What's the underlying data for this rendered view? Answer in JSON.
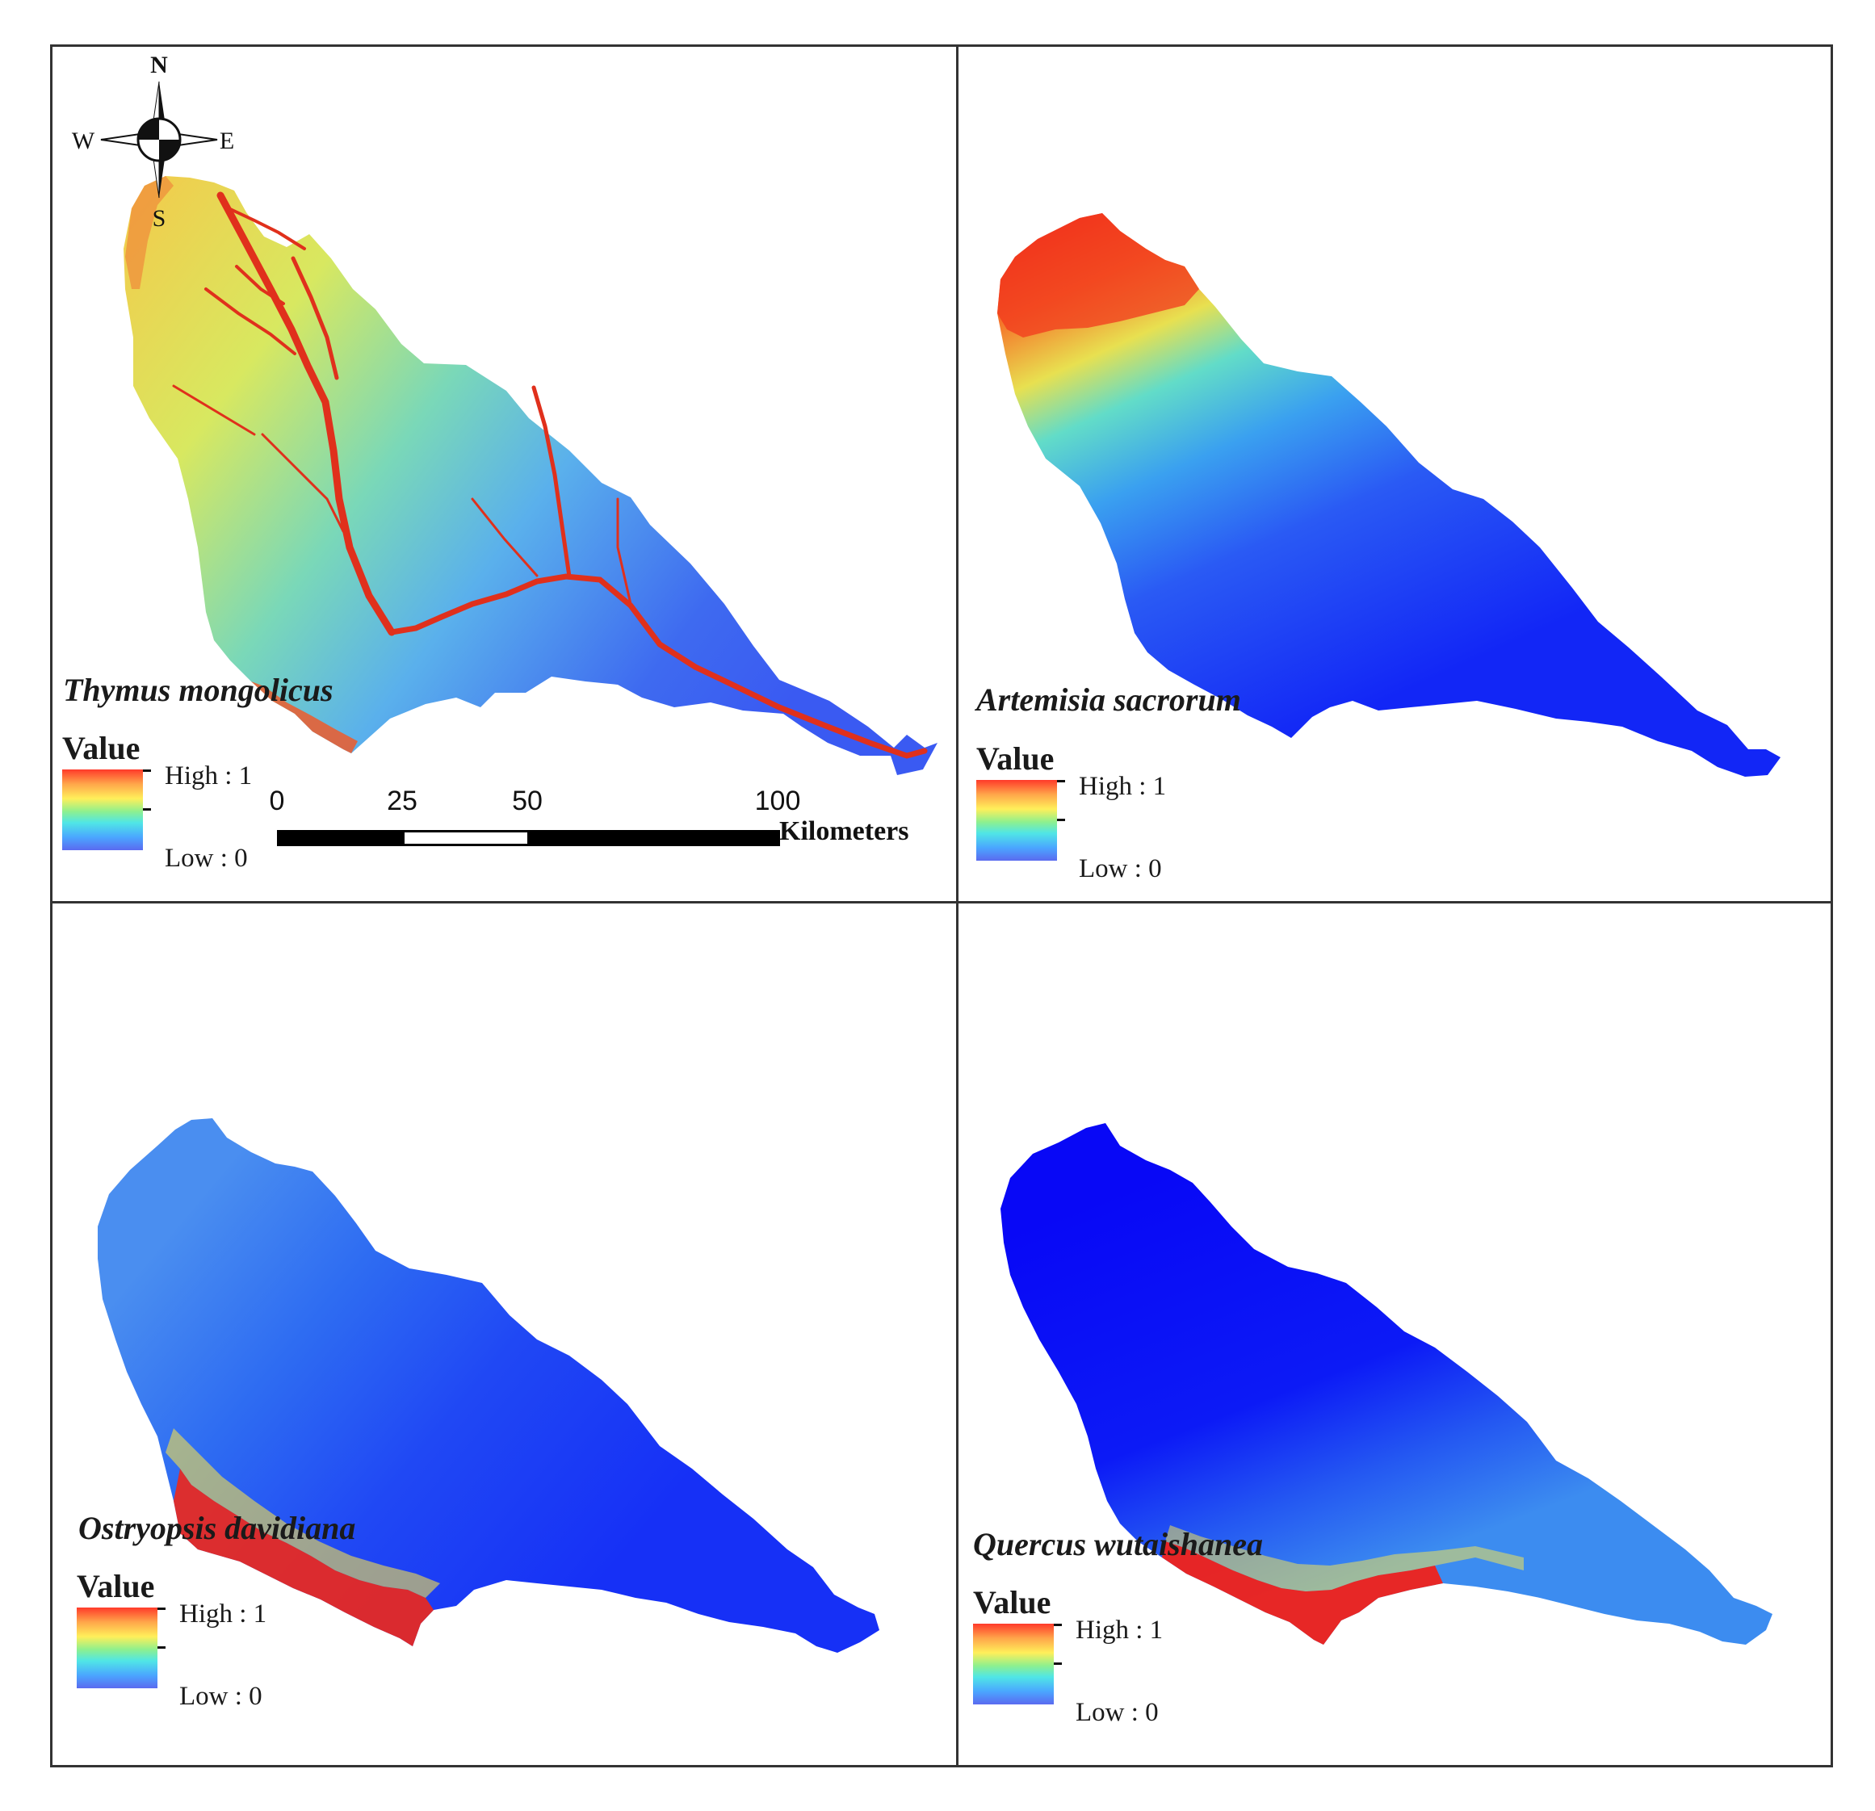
{
  "figure": {
    "panels": [
      {
        "id": "thymus",
        "species": "Thymus mongolicus",
        "pattern": "river-network-high",
        "legend": {
          "title": "Value",
          "high": "High : 1",
          "low": "Low : 0"
        }
      },
      {
        "id": "artemisia",
        "species": "Artemisia sacrorum",
        "pattern": "northwest-high",
        "legend": {
          "title": "Value",
          "high": "High : 1",
          "low": "Low : 0"
        }
      },
      {
        "id": "ostryopsis",
        "species": "Ostryopsis davidiana",
        "pattern": "southwest-high",
        "legend": {
          "title": "Value",
          "high": "High : 1",
          "low": "Low : 0"
        }
      },
      {
        "id": "quercus",
        "species": "Quercus wutaishanea",
        "pattern": "south-edge-high",
        "legend": {
          "title": "Value",
          "high": "High : 1",
          "low": "Low : 0"
        }
      }
    ],
    "compass": {
      "north": "N",
      "south": "S",
      "east": "E",
      "west": "W"
    },
    "scale_bar": {
      "ticks": [
        "0",
        "25",
        "50",
        "100"
      ],
      "unit": "Kilometers"
    },
    "color_ramp": {
      "high": "#ff3a2a",
      "mid": "#ffef5a",
      "mid_low": "#50e6e6",
      "low": "#5a6af0",
      "deep_low": "#0a10f5"
    }
  }
}
